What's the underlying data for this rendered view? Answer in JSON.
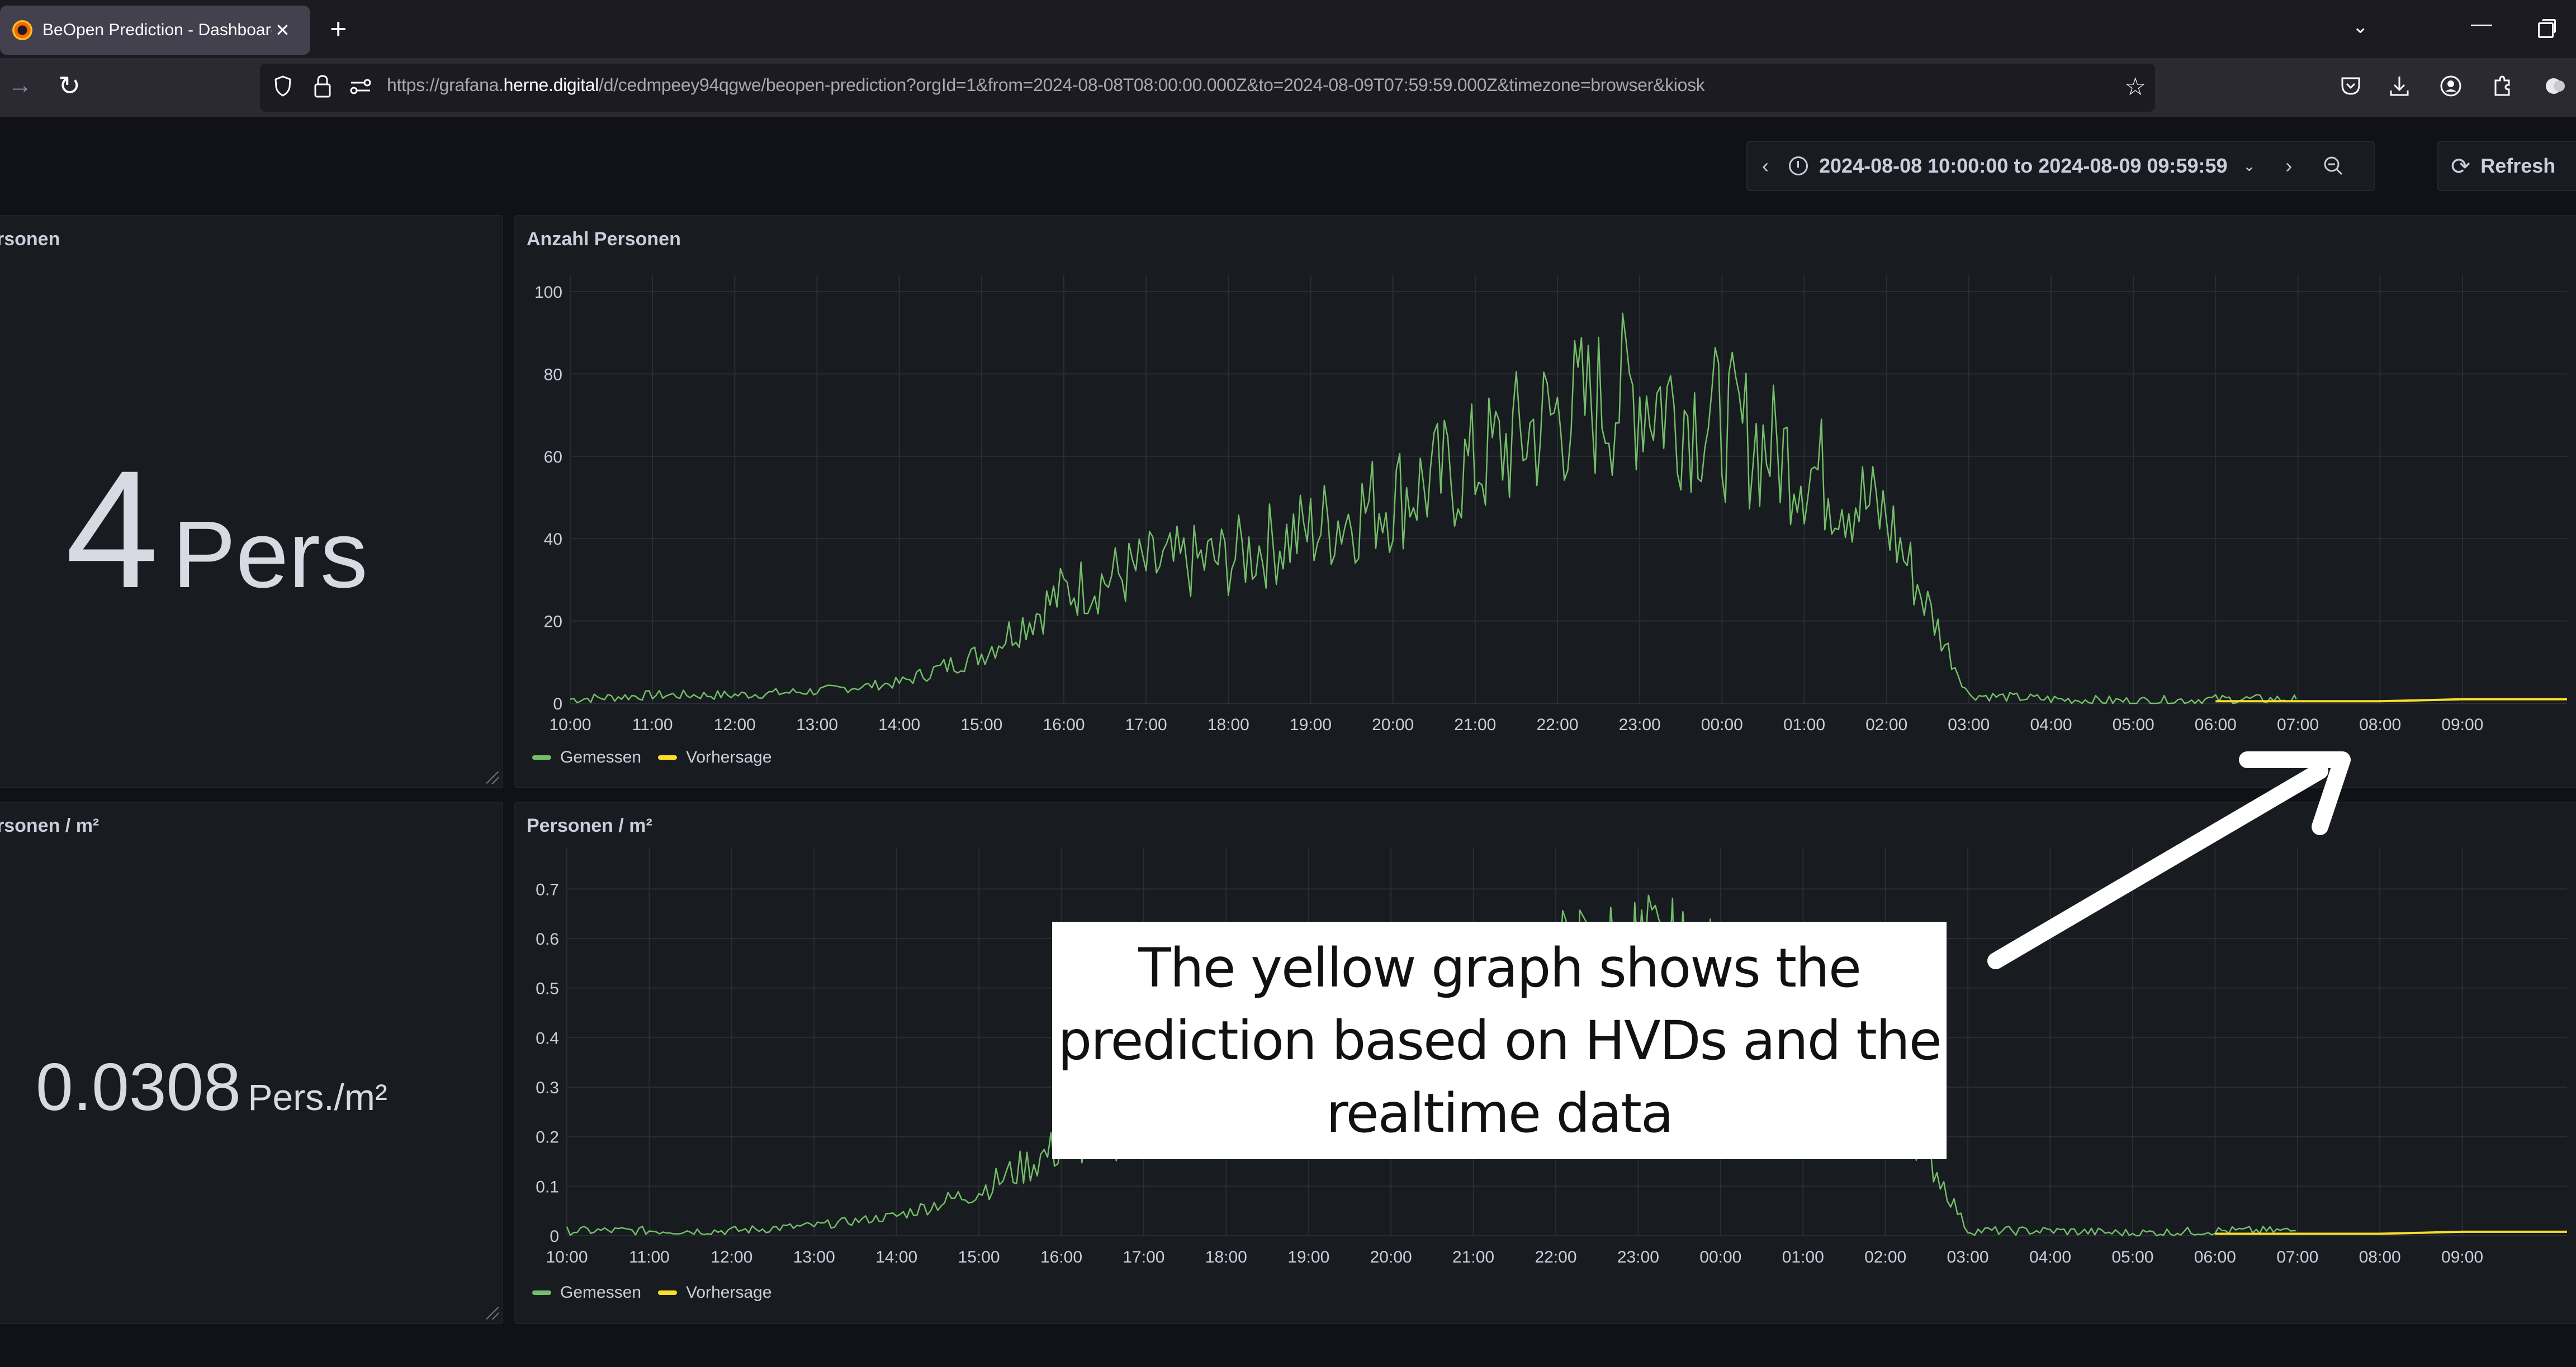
{
  "browser": {
    "tab": {
      "title": "BeOpen Prediction - Dashboard",
      "close": "✕"
    },
    "new_tab": "+",
    "list_tabs": "⌄",
    "window": {
      "minimize": "—"
    },
    "nav": {
      "forward": "→",
      "reload": "↻"
    },
    "url": {
      "prefix": "https://grafana.",
      "host": "herne.digital",
      "rest": "/d/cedmpeey94qgwe/beopen-prediction?orgId=1&from=2024-08-08T08:00:00.000Z&to=2024-08-09T07:59:59.000Z&timezone=browser&kiosk"
    },
    "bookmark": "☆"
  },
  "toolbar": {
    "prev": "‹",
    "time_range": "2024-08-08 10:00:00 to 2024-08-09 09:59:59",
    "caret": "⌄",
    "next": "›",
    "refresh_icon": "⟳",
    "refresh_label": "Refresh"
  },
  "panels": {
    "stat_count": {
      "title": "rsonen",
      "value": "4",
      "unit": "Pers"
    },
    "ts_count": {
      "title": "Anzahl Personen"
    },
    "stat_density": {
      "title": "rsonen / m²",
      "value": "0.0308",
      "unit": "Pers./m²"
    },
    "ts_density": {
      "title": "Personen / m²"
    }
  },
  "legend": {
    "measured": "Gemessen",
    "forecast": "Vorhersage",
    "measured_color": "#73bf69",
    "forecast_color": "#fade2a"
  },
  "annotation": {
    "text": "The yellow graph shows the prediction based on HVDs and the realtime data"
  },
  "chart_data": [
    {
      "type": "line",
      "title": "Anzahl Personen",
      "xlabel": "",
      "ylabel": "",
      "ylim": [
        0,
        100
      ],
      "yticks": [
        0,
        20,
        40,
        60,
        80,
        100
      ],
      "x": [
        "10:00",
        "11:00",
        "12:00",
        "13:00",
        "14:00",
        "15:00",
        "16:00",
        "17:00",
        "18:00",
        "19:00",
        "20:00",
        "21:00",
        "22:00",
        "23:00",
        "00:00",
        "01:00",
        "02:00",
        "03:00",
        "04:00",
        "05:00",
        "06:00",
        "07:00",
        "08:00",
        "09:00"
      ],
      "grid": true,
      "legend_position": "bottom",
      "series": [
        {
          "name": "Gemessen",
          "color": "#73bf69",
          "values": [
            1,
            2,
            2,
            3,
            5,
            12,
            27,
            33,
            35,
            42,
            50,
            58,
            70,
            76,
            68,
            58,
            45,
            2,
            1,
            0.5,
            1,
            null,
            null,
            null
          ]
        },
        {
          "name": "Vorhersage",
          "color": "#fade2a",
          "values": [
            null,
            null,
            null,
            null,
            null,
            null,
            null,
            null,
            null,
            null,
            null,
            null,
            null,
            null,
            null,
            null,
            null,
            null,
            null,
            null,
            0.5,
            0.5,
            0.5,
            1
          ]
        }
      ]
    },
    {
      "type": "line",
      "title": "Personen / m²",
      "xlabel": "",
      "ylabel": "",
      "ylim": [
        0,
        0.75
      ],
      "yticks": [
        0,
        0.1,
        0.2,
        0.3,
        0.4,
        0.5,
        0.6,
        0.7
      ],
      "x": [
        "10:00",
        "11:00",
        "12:00",
        "13:00",
        "14:00",
        "15:00",
        "16:00",
        "17:00",
        "18:00",
        "19:00",
        "20:00",
        "21:00",
        "22:00",
        "23:00",
        "00:00",
        "01:00",
        "02:00",
        "03:00",
        "04:00",
        "05:00",
        "06:00",
        "07:00",
        "08:00",
        "09:00"
      ],
      "grid": true,
      "legend_position": "bottom",
      "series": [
        {
          "name": "Gemessen",
          "color": "#73bf69",
          "values": [
            0.01,
            0.01,
            0.01,
            0.02,
            0.04,
            0.09,
            0.18,
            0.22,
            0.25,
            0.3,
            0.37,
            0.43,
            0.52,
            0.56,
            0.5,
            0.43,
            0.33,
            0.01,
            0.01,
            0.005,
            0.01,
            null,
            null,
            null
          ]
        },
        {
          "name": "Vorhersage",
          "color": "#fade2a",
          "values": [
            null,
            null,
            null,
            null,
            null,
            null,
            null,
            null,
            null,
            null,
            null,
            null,
            null,
            null,
            null,
            null,
            null,
            null,
            null,
            null,
            0.004,
            0.004,
            0.004,
            0.008
          ]
        }
      ]
    }
  ]
}
